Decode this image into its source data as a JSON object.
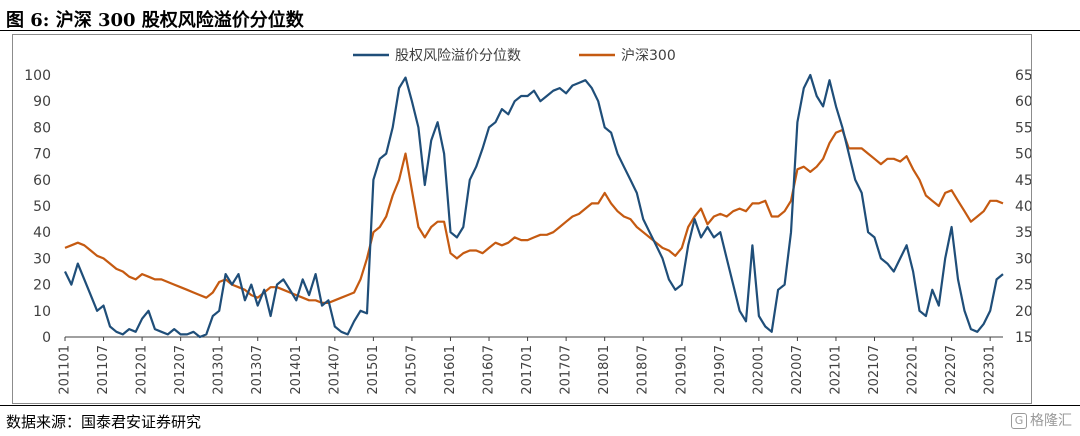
{
  "title": "图 6:  沪深 300 股权风险溢价分位数",
  "source": "数据来源：国泰君安证券研究",
  "watermark": "格隆汇",
  "chart_data": {
    "type": "line",
    "categories": [
      "201101",
      "201107",
      "201201",
      "201207",
      "201301",
      "201307",
      "201401",
      "201407",
      "201501",
      "201507",
      "201601",
      "201607",
      "201701",
      "201707",
      "201801",
      "201807",
      "201901",
      "201907",
      "202001",
      "202007",
      "202101",
      "202107",
      "202201",
      "202207",
      "202301"
    ],
    "x": [
      "201101",
      "201102",
      "201103",
      "201104",
      "201105",
      "201106",
      "201107",
      "201108",
      "201109",
      "201110",
      "201111",
      "201112",
      "201201",
      "201202",
      "201203",
      "201204",
      "201205",
      "201206",
      "201207",
      "201208",
      "201209",
      "201210",
      "201211",
      "201212",
      "201301",
      "201302",
      "201303",
      "201304",
      "201305",
      "201306",
      "201307",
      "201308",
      "201309",
      "201310",
      "201311",
      "201312",
      "201401",
      "201402",
      "201403",
      "201404",
      "201405",
      "201406",
      "201407",
      "201408",
      "201409",
      "201410",
      "201411",
      "201412",
      "201501",
      "201502",
      "201503",
      "201504",
      "201505",
      "201506",
      "201507",
      "201508",
      "201509",
      "201510",
      "201511",
      "201512",
      "201601",
      "201602",
      "201603",
      "201604",
      "201605",
      "201606",
      "201607",
      "201608",
      "201609",
      "201610",
      "201611",
      "201612",
      "201701",
      "201702",
      "201703",
      "201704",
      "201705",
      "201706",
      "201707",
      "201708",
      "201709",
      "201710",
      "201711",
      "201712",
      "201801",
      "201802",
      "201803",
      "201804",
      "201805",
      "201806",
      "201807",
      "201808",
      "201809",
      "201810",
      "201811",
      "201812",
      "201901",
      "201902",
      "201903",
      "201904",
      "201905",
      "201906",
      "201907",
      "201908",
      "201909",
      "201910",
      "201911",
      "201912",
      "202001",
      "202002",
      "202003",
      "202004",
      "202005",
      "202006",
      "202007",
      "202008",
      "202009",
      "202010",
      "202011",
      "202012",
      "202101",
      "202102",
      "202103",
      "202104",
      "202105",
      "202106",
      "202107",
      "202108",
      "202109",
      "202110",
      "202111",
      "202112",
      "202201",
      "202202",
      "202203",
      "202204",
      "202205",
      "202206",
      "202207",
      "202208",
      "202209",
      "202210",
      "202211",
      "202212",
      "202301",
      "202302",
      "202303"
    ],
    "series": [
      {
        "name": "股权风险溢价分位数",
        "axis": "left",
        "color": "#1f4e79",
        "values": [
          25,
          20,
          28,
          22,
          16,
          10,
          12,
          4,
          2,
          1,
          3,
          2,
          7,
          10,
          3,
          2,
          1,
          3,
          1,
          1,
          2,
          0,
          1,
          8,
          10,
          24,
          20,
          24,
          14,
          20,
          12,
          18,
          8,
          20,
          22,
          18,
          14,
          22,
          16,
          24,
          12,
          14,
          4,
          2,
          1,
          6,
          10,
          9,
          60,
          68,
          70,
          80,
          95,
          99,
          90,
          80,
          58,
          75,
          82,
          70,
          40,
          38,
          42,
          60,
          65,
          72,
          80,
          82,
          87,
          85,
          90,
          92,
          92,
          94,
          90,
          92,
          94,
          95,
          93,
          96,
          97,
          98,
          95,
          90,
          80,
          78,
          70,
          65,
          60,
          55,
          45,
          40,
          35,
          30,
          22,
          18,
          20,
          35,
          45,
          38,
          42,
          38,
          40,
          30,
          20,
          10,
          6,
          35,
          8,
          4,
          2,
          18,
          20,
          40,
          82,
          95,
          100,
          92,
          88,
          98,
          88,
          80,
          70,
          60,
          55,
          40,
          38,
          30,
          28,
          25,
          30,
          35,
          25,
          10,
          8,
          18,
          12,
          30,
          42,
          22,
          10,
          3,
          2,
          5,
          10,
          22,
          24
        ]
      },
      {
        "name": "沪深300",
        "axis": "right",
        "color": "#c55a11",
        "values": [
          3200,
          3250,
          3300,
          3250,
          3150,
          3050,
          3000,
          2900,
          2800,
          2750,
          2650,
          2600,
          2700,
          2650,
          2600,
          2600,
          2550,
          2500,
          2450,
          2400,
          2350,
          2300,
          2250,
          2350,
          2550,
          2600,
          2500,
          2450,
          2400,
          2300,
          2250,
          2350,
          2450,
          2450,
          2400,
          2350,
          2300,
          2250,
          2200,
          2200,
          2150,
          2150,
          2200,
          2250,
          2300,
          2350,
          2600,
          3000,
          3500,
          3600,
          3800,
          4200,
          4500,
          5000,
          4300,
          3600,
          3400,
          3600,
          3700,
          3700,
          3100,
          3000,
          3100,
          3150,
          3150,
          3100,
          3200,
          3300,
          3250,
          3300,
          3400,
          3350,
          3350,
          3400,
          3450,
          3450,
          3500,
          3600,
          3700,
          3800,
          3850,
          3950,
          4050,
          4050,
          4250,
          4050,
          3900,
          3800,
          3750,
          3600,
          3500,
          3400,
          3300,
          3200,
          3150,
          3050,
          3200,
          3600,
          3800,
          3950,
          3650,
          3800,
          3850,
          3800,
          3900,
          3950,
          3900,
          4050,
          4050,
          4100,
          3800,
          3800,
          3900,
          4100,
          4700,
          4750,
          4650,
          4750,
          4900,
          5200,
          5400,
          5450,
          5100,
          5100,
          5100,
          5000,
          4900,
          4800,
          4900,
          4900,
          4850,
          4950,
          4700,
          4500,
          4200,
          4100,
          4000,
          4250,
          4300,
          4100,
          3900,
          3700,
          3800,
          3900,
          4100,
          4100,
          4050
        ]
      }
    ],
    "y_left": {
      "min": 0,
      "max": 100,
      "ticks": [
        0,
        10,
        20,
        30,
        40,
        50,
        60,
        70,
        80,
        90,
        100
      ]
    },
    "y_right": {
      "min": 1500,
      "max": 6500,
      "ticks": [
        1500,
        2000,
        2500,
        3000,
        3500,
        4000,
        4500,
        5000,
        5500,
        6000,
        6500
      ]
    },
    "legend_position": "top-center",
    "grid": false
  }
}
